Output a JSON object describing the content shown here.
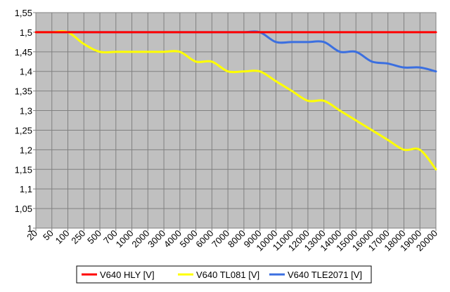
{
  "chart_data": {
    "type": "line",
    "title": "",
    "xlabel": "",
    "ylabel": "",
    "categories": [
      "20",
      "50",
      "100",
      "250",
      "500",
      "700",
      "1000",
      "2000",
      "3000",
      "4000",
      "5000",
      "6000",
      "7000",
      "8000",
      "9000",
      "10000",
      "11000",
      "12000",
      "13000",
      "14000",
      "15000",
      "16000",
      "17000",
      "18000",
      "19000",
      "20000"
    ],
    "ylim": [
      1,
      1.55
    ],
    "yticks": [
      "1",
      "1,05",
      "1,1",
      "1,15",
      "1,2",
      "1,25",
      "1,3",
      "1,35",
      "1,4",
      "1,45",
      "1,5",
      "1,55"
    ],
    "grid": true,
    "legend_position": "bottom",
    "series": [
      {
        "name": "V640 HLY [V]",
        "color": "#ff0000",
        "values": [
          1.5,
          1.5,
          1.5,
          1.5,
          1.5,
          1.5,
          1.5,
          1.5,
          1.5,
          1.5,
          1.5,
          1.5,
          1.5,
          1.5,
          1.5,
          1.5,
          1.5,
          1.5,
          1.5,
          1.5,
          1.5,
          1.5,
          1.5,
          1.5,
          1.5,
          1.5
        ]
      },
      {
        "name": "V640 TL081 [V]",
        "color": "#ffff00",
        "values": [
          1.5,
          1.5,
          1.5,
          1.47,
          1.45,
          1.45,
          1.45,
          1.45,
          1.45,
          1.45,
          1.425,
          1.425,
          1.4,
          1.4,
          1.4,
          1.375,
          1.35,
          1.325,
          1.325,
          1.3,
          1.275,
          1.25,
          1.225,
          1.2,
          1.2,
          1.15
        ]
      },
      {
        "name": "V640 TLE2071 [V]",
        "color": "#3b6fe0",
        "values": [
          1.5,
          1.5,
          1.5,
          1.5,
          1.5,
          1.5,
          1.5,
          1.5,
          1.5,
          1.5,
          1.5,
          1.5,
          1.5,
          1.5,
          1.5,
          1.475,
          1.475,
          1.475,
          1.475,
          1.45,
          1.45,
          1.425,
          1.42,
          1.41,
          1.41,
          1.4
        ]
      }
    ],
    "plot_background": "#c0c0c0",
    "grid_color": "#808080"
  }
}
